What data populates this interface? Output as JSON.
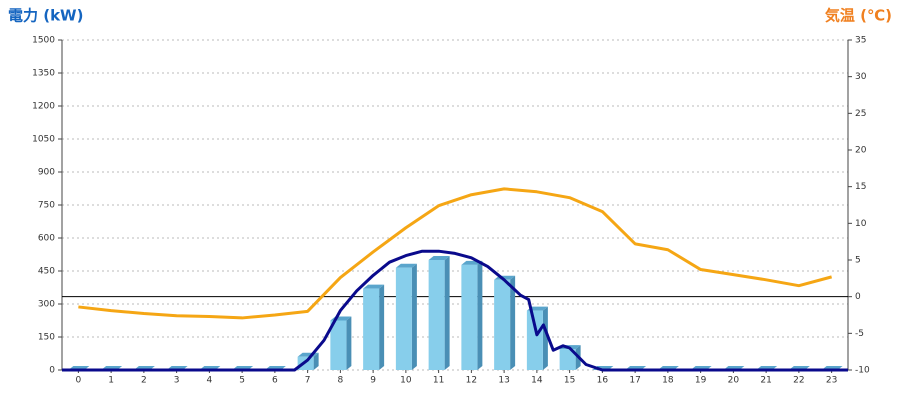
{
  "chart_data": {
    "type": "bar",
    "y_title": "電力 (kW)",
    "y2_title": "気温 (℃)",
    "categories": [
      "0",
      "1",
      "2",
      "3",
      "4",
      "5",
      "6",
      "7",
      "8",
      "9",
      "10",
      "11",
      "12",
      "13",
      "14",
      "15",
      "16",
      "17",
      "18",
      "19",
      "20",
      "21",
      "22",
      "23"
    ],
    "xlim": [
      -0.5,
      23.5
    ],
    "ylim": [
      0,
      1500
    ],
    "yticks": [
      0,
      150,
      300,
      450,
      600,
      750,
      900,
      1050,
      1200,
      1350,
      1500
    ],
    "y2lim": [
      -10,
      35
    ],
    "y2ticks": [
      -10,
      -5,
      0,
      5,
      10,
      15,
      20,
      25,
      30,
      35
    ],
    "grid": true,
    "y2_reference_line": 0,
    "series": [
      {
        "type": "bar",
        "color": "#87ceeb",
        "values": [
          0,
          0,
          0,
          0,
          0,
          0,
          0,
          60,
          225,
          370,
          465,
          500,
          478,
          410,
          270,
          95,
          0,
          0,
          0,
          0,
          0,
          0,
          0,
          0
        ]
      },
      {
        "type": "line",
        "color": "#0a0a8c",
        "x": [
          -0.5,
          6.6,
          7,
          7.5,
          8,
          8.5,
          9,
          9.5,
          10,
          10.5,
          11,
          11.5,
          12,
          12.5,
          13,
          13.5,
          13.75,
          14,
          14.2,
          14.5,
          14.8,
          15,
          15.5,
          16,
          23.5
        ],
        "values": [
          0,
          0,
          45,
          135,
          270,
          360,
          430,
          490,
          520,
          540,
          540,
          530,
          510,
          470,
          410,
          340,
          320,
          160,
          205,
          90,
          110,
          100,
          25,
          0,
          0
        ]
      },
      {
        "type": "line",
        "color": "#f5a614",
        "axis": "y2",
        "values": [
          -1.4,
          -1.9,
          -2.3,
          -2.6,
          -2.7,
          -2.9,
          -2.5,
          -2.0,
          2.6,
          6.1,
          9.4,
          12.4,
          13.9,
          14.7,
          14.3,
          13.5,
          11.6,
          7.2,
          6.4,
          3.7,
          3.0,
          2.3,
          1.5,
          2.7
        ]
      }
    ]
  }
}
